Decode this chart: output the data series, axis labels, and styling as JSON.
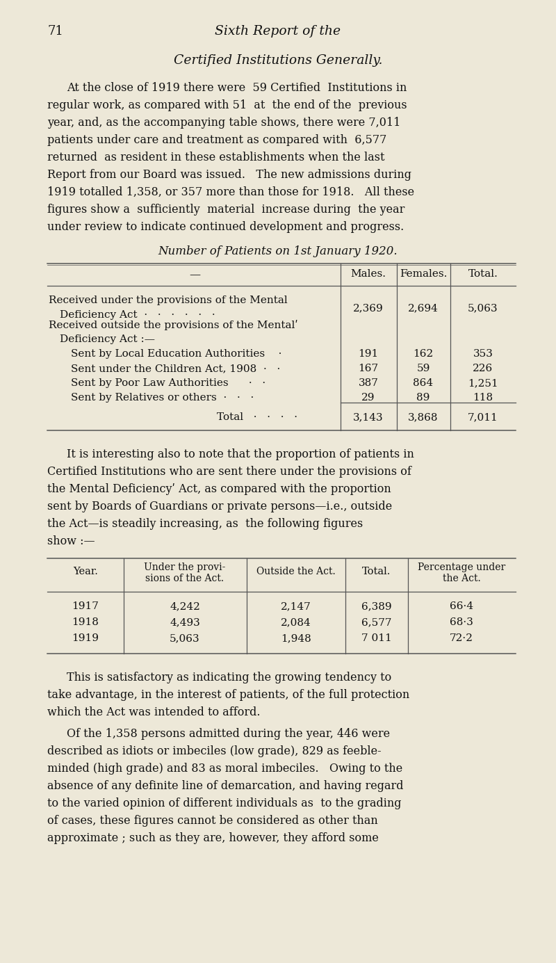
{
  "bg_color": "#ede8d8",
  "text_color": "#1a1a1a",
  "page_number": "71",
  "header_title": "Sixth Report of the",
  "section_title": "Certified Institutions Generally.",
  "para1_lines": [
    "At the close of 1919 there were  59 Certified  Institutions in",
    "regular work, as compared with 51  at  the end of the  previous",
    "year, and, as the accompanying table shows, there were 7,011",
    "patients under care and treatment as compared with  6,577",
    "returned  as resident in these establishments when the last",
    "Report from our Board was issued.   The new admissions during",
    "1919 totalled 1,358, or 357 more than those for 1918.   All these",
    "figures show a  sufficiently  material  increase during  the year",
    "under review to indicate continued development and progress."
  ],
  "table1_title": "Number of Patients on 1st January 1920.",
  "para2_lines": [
    "It is interesting also to note that the proportion of patients in",
    "Certified Institutions who are sent there under the provisions of",
    "the Mental Deficiencyʹ Act, as compared with the proportion",
    "sent by Boards of Guardians or private persons—i.e., outside",
    "the Act—is steadily increasing, as  the following figures",
    "show :—"
  ],
  "table2_rows": [
    [
      "1917",
      "4,242",
      "2,147",
      "6,389",
      "66·4"
    ],
    [
      "1918",
      "4,493",
      "2,084",
      "6,577",
      "68·3"
    ],
    [
      "1919",
      "5,063",
      "1,948",
      "7 011",
      "72·2"
    ]
  ],
  "para3_lines": [
    "This is satisfactory as indicating the growing tendency to",
    "take advantage, in the interest of patients, of the full protection",
    "which the Act was intended to afford."
  ],
  "para4_lines": [
    "Of the 1,358 persons admitted during the year, 446 were",
    "described as idiots or imbeciles (low grade), 829 as feeble-",
    "minded (high grade) and 83 as moral imbeciles.   Owing to the",
    "absence of any definite line of demarcation, and having regard",
    "to the varied opinion of different individuals as  to the grading",
    "of cases, these figures cannot be considered as other than",
    "approximate ; such as they are, however, they afford some"
  ]
}
